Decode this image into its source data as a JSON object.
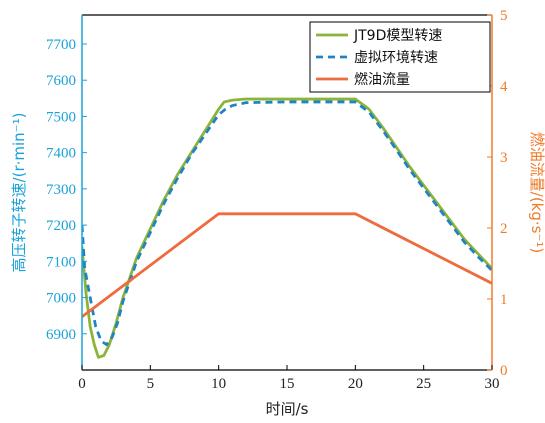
{
  "chart_data": {
    "type": "line",
    "title": "",
    "xlabel": "时间/s",
    "ylabel_left": "高压转子转速/(r·min⁻¹)",
    "ylabel_right": "燃油流量/(kg·s⁻¹)",
    "xlim": [
      0,
      30
    ],
    "ylim_left": [
      6800,
      7780
    ],
    "ylim_right": [
      0,
      5
    ],
    "x_ticks": [
      "0",
      "5",
      "10",
      "15",
      "20",
      "25",
      "30"
    ],
    "y_left_ticks": [
      "6900",
      "7000",
      "7100",
      "7200",
      "7300",
      "7400",
      "7500",
      "7600",
      "7700"
    ],
    "y_right_ticks": [
      "0",
      "1",
      "2",
      "3",
      "4",
      "5"
    ],
    "grid": false,
    "legend_position": "top-right",
    "colors": {
      "left_axis": "#1aa3d9",
      "right_axis": "#f07b2a",
      "series_green": "#8cb43a",
      "series_blue": "#1f84c4",
      "series_orange": "#ee6b3d"
    },
    "series": [
      {
        "name": "JT9D模型转速",
        "axis": "left",
        "style": "solid",
        "color": "#8cb43a",
        "x": [
          0,
          0.3,
          0.6,
          0.9,
          1.2,
          1.6,
          2.0,
          2.5,
          3.0,
          4.0,
          5.0,
          6.0,
          7.0,
          8.0,
          9.0,
          10.0,
          10.4,
          11.0,
          12.0,
          15.0,
          18.0,
          20.0,
          21.0,
          22.0,
          23.0,
          24.0,
          25.0,
          26.0,
          27.0,
          28.0,
          29.0,
          30.0
        ],
        "y": [
          7140,
          7010,
          6920,
          6870,
          6835,
          6840,
          6870,
          6930,
          7000,
          7110,
          7190,
          7270,
          7340,
          7400,
          7460,
          7520,
          7540,
          7545,
          7548,
          7548,
          7548,
          7548,
          7520,
          7470,
          7415,
          7360,
          7310,
          7260,
          7210,
          7160,
          7120,
          7080
        ]
      },
      {
        "name": "虚拟环境转速",
        "axis": "left",
        "style": "dashed",
        "color": "#1f84c4",
        "x": [
          0,
          0.2,
          0.4,
          0.6,
          0.8,
          1.0,
          1.4,
          1.8,
          2.2,
          2.6,
          3.0,
          4.0,
          5.0,
          6.0,
          7.0,
          8.0,
          9.0,
          10.0,
          10.5,
          11.0,
          12.0,
          15.0,
          18.0,
          20.0,
          21.0,
          22.0,
          23.0,
          24.0,
          25.0,
          26.0,
          27.0,
          28.0,
          29.0,
          30.0
        ],
        "y": [
          7200,
          7080,
          7040,
          7000,
          6960,
          6920,
          6880,
          6870,
          6890,
          6930,
          6990,
          7100,
          7180,
          7260,
          7330,
          7395,
          7450,
          7505,
          7520,
          7530,
          7538,
          7540,
          7540,
          7540,
          7512,
          7462,
          7408,
          7352,
          7302,
          7252,
          7202,
          7152,
          7112,
          7075
        ]
      },
      {
        "name": "燃油流量",
        "axis": "right",
        "style": "solid",
        "color": "#ee6b3d",
        "x": [
          0,
          10,
          20,
          30
        ],
        "y": [
          0.75,
          2.2,
          2.2,
          1.22
        ]
      }
    ]
  }
}
